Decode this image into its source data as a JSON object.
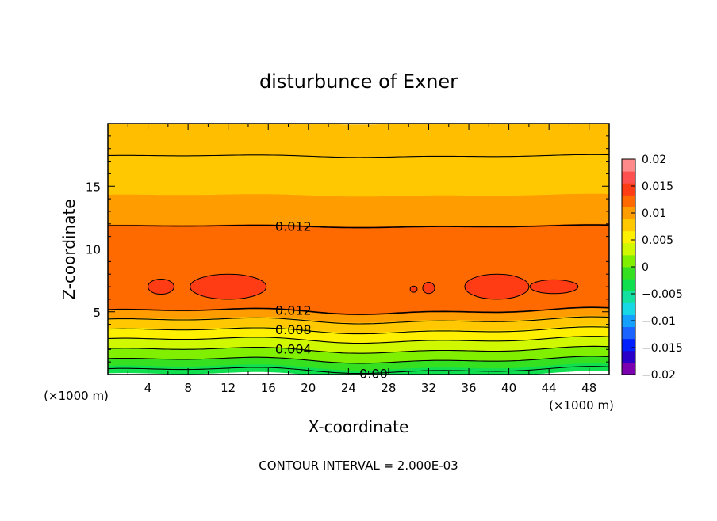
{
  "chart_data": {
    "type": "heatmap",
    "title": "disturbunce of Exner",
    "xlabel": "X-coordinate",
    "ylabel": "Z-coordinate",
    "x_unit": "(×1000 m)",
    "y_unit": "(×1000 m)",
    "footer": "CONTOUR INTERVAL = 2.000E-03",
    "xlim": [
      0,
      50
    ],
    "ylim": [
      0,
      20
    ],
    "x_ticks": [
      "4",
      "8",
      "12",
      "16",
      "20",
      "24",
      "28",
      "32",
      "36",
      "40",
      "44",
      "48"
    ],
    "y_ticks": [
      "5",
      "10",
      "15"
    ],
    "colorbar": {
      "ticks": [
        "0.02",
        "0.015",
        "0.01",
        "0.005",
        "0",
        "−0.005",
        "−0.01",
        "−0.015",
        "−0.02"
      ],
      "range": [
        -0.02,
        0.02
      ],
      "colors": [
        "#7a00b0",
        "#2a00c8",
        "#0020ff",
        "#1b64ff",
        "#14a0ff",
        "#18d8e6",
        "#14e0a0",
        "#10e050",
        "#34e020",
        "#80f000",
        "#d0f800",
        "#fff000",
        "#ffc800",
        "#ff9c00",
        "#ff6a00",
        "#ff3c14",
        "#ff5050",
        "#ff8a8a"
      ]
    },
    "bands": [
      {
        "z": 0.0,
        "v": -0.001,
        "color": "#10e050"
      },
      {
        "z": 0.6,
        "v": 0.001,
        "color": "#34e020"
      },
      {
        "z": 1.2,
        "v": 0.003,
        "color": "#80f000"
      },
      {
        "z": 2.0,
        "v": 0.005,
        "color": "#d0f800"
      },
      {
        "z": 2.8,
        "v": 0.007,
        "color": "#fff000"
      },
      {
        "z": 3.6,
        "v": 0.009,
        "color": "#ffc800"
      },
      {
        "z": 4.4,
        "v": 0.011,
        "color": "#ff9c00"
      },
      {
        "z": 5.0,
        "v": 0.013,
        "color": "#ff6a00"
      },
      {
        "z": 9.6,
        "v": 0.013,
        "color": "#ff6a00"
      },
      {
        "z": 11.9,
        "v": 0.011,
        "color": "#ff9c00"
      },
      {
        "z": 14.3,
        "v": 0.009,
        "color": "#ffc800"
      },
      {
        "z": 17.4,
        "v": 0.007,
        "color": "#ffbf00"
      }
    ],
    "contours": [
      {
        "level": 0.0,
        "z": 0.35,
        "label": "0.00"
      },
      {
        "level": 0.002,
        "z": 1.15,
        "label": ""
      },
      {
        "level": 0.004,
        "z": 1.95,
        "label": "0.004"
      },
      {
        "level": 0.006,
        "z": 2.75,
        "label": ""
      },
      {
        "level": 0.008,
        "z": 3.5,
        "label": "0.008"
      },
      {
        "level": 0.01,
        "z": 4.3,
        "label": ""
      },
      {
        "level": 0.012,
        "z": 5.05,
        "label": "0.012"
      },
      {
        "level": 0.012,
        "z": 11.8,
        "label": "0.012"
      },
      {
        "level": 0.01,
        "z": 17.4,
        "label": ""
      }
    ],
    "max_regions": [
      {
        "level": 0.014,
        "x": 5.3,
        "z": 7.0,
        "rx": 1.3,
        "rz": 0.6
      },
      {
        "level": 0.014,
        "x": 12.0,
        "z": 7.0,
        "rx": 3.8,
        "rz": 1.0
      },
      {
        "level": 0.014,
        "x": 30.5,
        "z": 6.8,
        "rx": 0.35,
        "rz": 0.25
      },
      {
        "level": 0.014,
        "x": 32.0,
        "z": 6.9,
        "rx": 0.6,
        "rz": 0.45
      },
      {
        "level": 0.014,
        "x": 38.8,
        "z": 7.0,
        "rx": 3.2,
        "rz": 1.0
      },
      {
        "level": 0.014,
        "x": 44.5,
        "z": 7.0,
        "rx": 2.4,
        "rz": 0.55
      }
    ]
  }
}
